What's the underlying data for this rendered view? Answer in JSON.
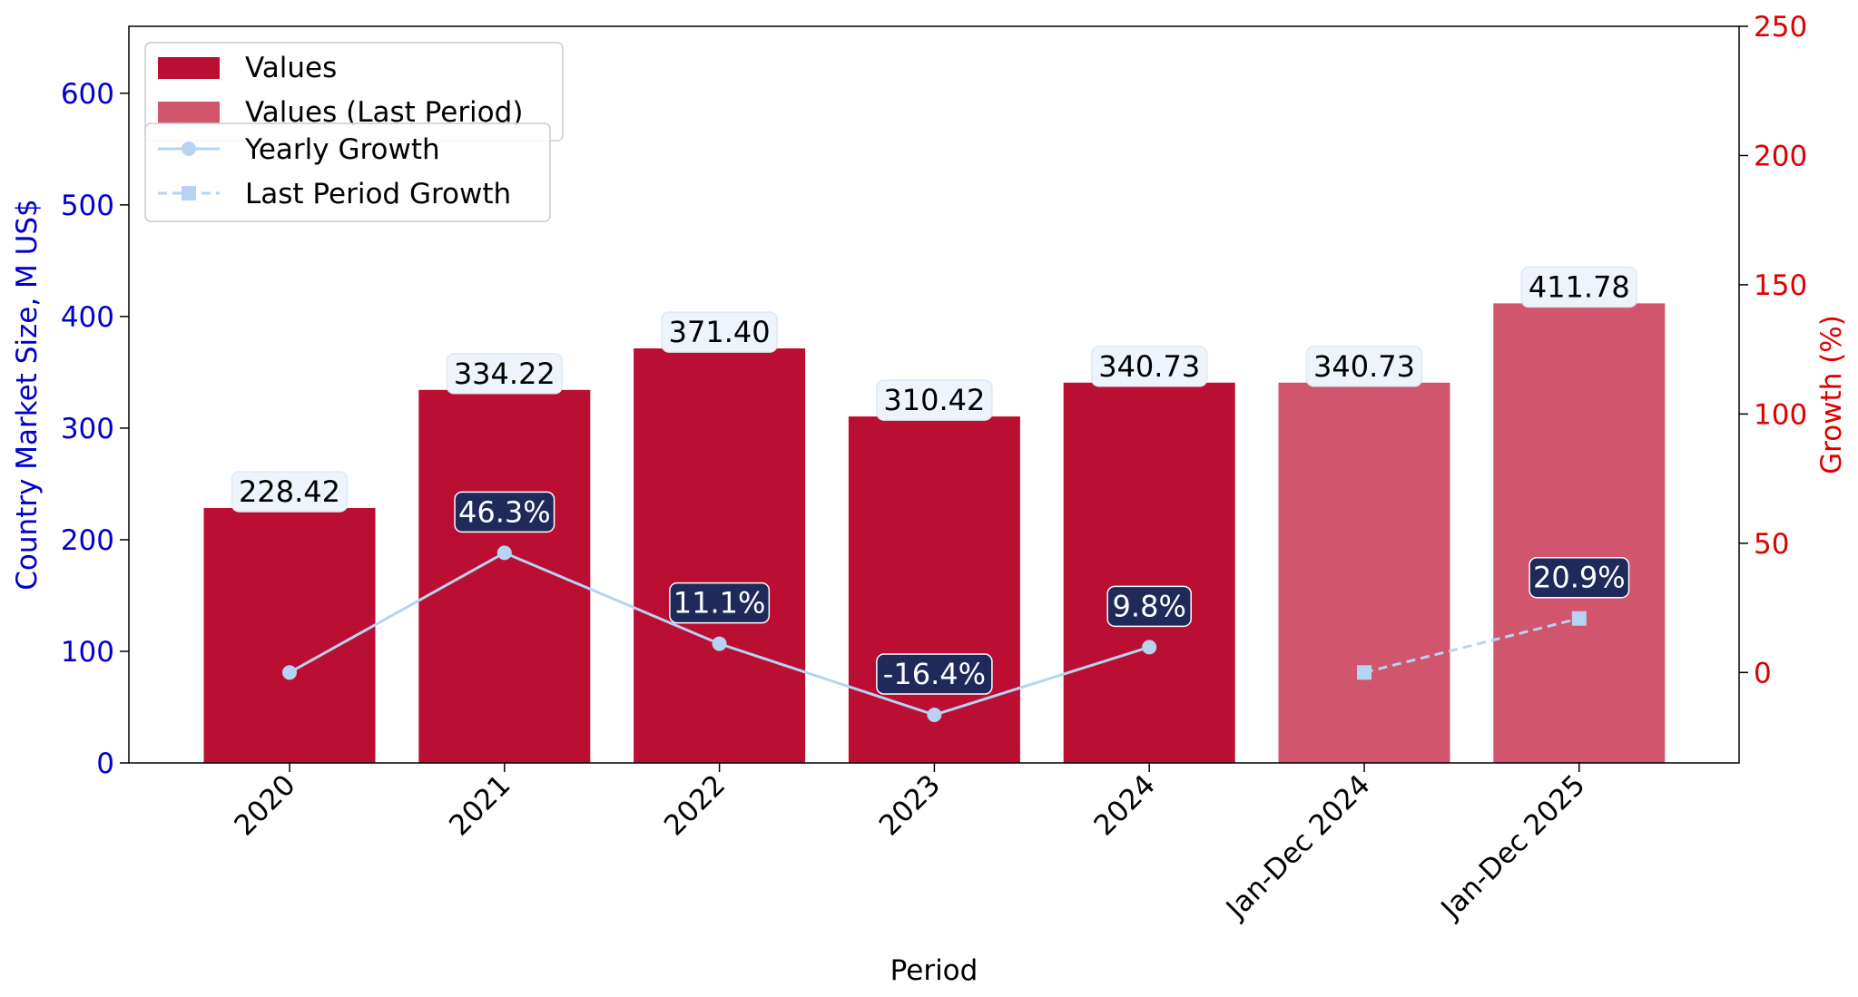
{
  "chart_data": {
    "type": "bar",
    "xlabel": "Period",
    "ylabel_left": "Country Market Size, M US$",
    "ylabel_right": "Growth (%)",
    "ylim_left": [
      0,
      660
    ],
    "yticks_left": [
      0,
      100,
      200,
      300,
      400,
      500,
      600
    ],
    "ylim_right": [
      -35,
      250
    ],
    "yticks_right": [
      0,
      50,
      100,
      150,
      200,
      250
    ],
    "categories": [
      "2020",
      "2021",
      "2022",
      "2023",
      "2024",
      "Jan-Dec 2024",
      "Jan-Dec 2025"
    ],
    "series": [
      {
        "name": "Values",
        "kind": "bar",
        "color": "#bb0e33",
        "values": [
          228.42,
          334.22,
          371.4,
          310.42,
          340.73,
          null,
          null
        ],
        "labels": [
          "228.42",
          "334.22",
          "371.40",
          "310.42",
          "340.73",
          "",
          ""
        ]
      },
      {
        "name": "Values (Last Period)",
        "kind": "bar",
        "color": "#d1556c",
        "values": [
          null,
          null,
          null,
          null,
          null,
          340.73,
          411.78
        ],
        "labels": [
          "",
          "",
          "",
          "",
          "",
          "340.73",
          "411.78"
        ]
      },
      {
        "name": "Yearly Growth",
        "kind": "line",
        "axis": "right",
        "color": "#b6d3f2",
        "values": [
          0,
          46.3,
          11.1,
          -16.4,
          9.8,
          null,
          null
        ],
        "labels": [
          "",
          "46.3%",
          "11.1%",
          "-16.4%",
          "9.8%",
          "",
          ""
        ]
      },
      {
        "name": "Last Period Growth",
        "kind": "line-dashed",
        "axis": "right",
        "color": "#b6d3f2",
        "values": [
          null,
          null,
          null,
          null,
          null,
          0,
          20.9
        ],
        "labels": [
          "",
          "",
          "",
          "",
          "",
          "",
          "20.9%"
        ]
      }
    ],
    "legend_position": "top-left",
    "colors": {
      "left_axis": "#0000cc",
      "right_axis": "#dd0000",
      "growth_label_bg": "#1f2a5a"
    }
  }
}
